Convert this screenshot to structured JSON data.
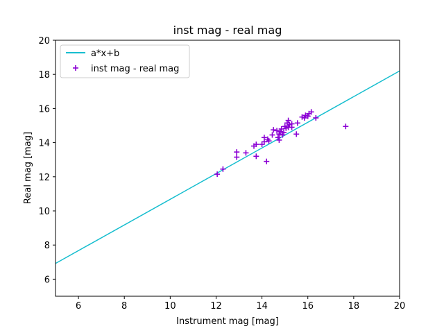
{
  "chart_data": {
    "type": "scatter",
    "title": "inst mag - real mag",
    "xlabel": "Instrument mag [mag]",
    "ylabel": "Real mag [mag]",
    "xlim": [
      5,
      20
    ],
    "ylim": [
      5,
      20
    ],
    "xticks": [
      6,
      8,
      10,
      12,
      14,
      16,
      18,
      20
    ],
    "yticks": [
      6,
      8,
      10,
      12,
      14,
      16,
      18,
      20
    ],
    "grid": false,
    "legend_position": "top-left",
    "colors": {
      "line": "#17becf",
      "points": "#8b00d4"
    },
    "fit_line": {
      "name": "a*x+b",
      "points": [
        [
          5,
          6.92
        ],
        [
          20,
          18.2
        ]
      ]
    },
    "scatter_series": {
      "name": "inst mag - real mag",
      "marker": "+",
      "points": [
        [
          12.05,
          12.15
        ],
        [
          12.3,
          12.45
        ],
        [
          12.9,
          13.15
        ],
        [
          12.9,
          13.45
        ],
        [
          13.3,
          13.4
        ],
        [
          13.65,
          13.8
        ],
        [
          13.75,
          13.2
        ],
        [
          13.75,
          13.9
        ],
        [
          14.0,
          13.9
        ],
        [
          14.1,
          14.05
        ],
        [
          14.1,
          14.3
        ],
        [
          14.2,
          12.9
        ],
        [
          14.25,
          14.2
        ],
        [
          14.3,
          14.1
        ],
        [
          14.45,
          14.45
        ],
        [
          14.5,
          14.75
        ],
        [
          14.65,
          14.7
        ],
        [
          14.7,
          14.3
        ],
        [
          14.75,
          14.5
        ],
        [
          14.75,
          14.15
        ],
        [
          14.8,
          14.65
        ],
        [
          14.85,
          14.8
        ],
        [
          14.9,
          14.45
        ],
        [
          14.95,
          14.6
        ],
        [
          15.0,
          14.95
        ],
        [
          15.05,
          14.85
        ],
        [
          15.1,
          15.15
        ],
        [
          15.15,
          14.9
        ],
        [
          15.15,
          15.3
        ],
        [
          15.2,
          15.05
        ],
        [
          15.3,
          15.1
        ],
        [
          15.3,
          14.9
        ],
        [
          15.5,
          14.5
        ],
        [
          15.55,
          15.15
        ],
        [
          15.75,
          15.5
        ],
        [
          15.85,
          15.45
        ],
        [
          15.9,
          15.6
        ],
        [
          16.0,
          15.55
        ],
        [
          16.05,
          15.7
        ],
        [
          16.15,
          15.8
        ],
        [
          16.35,
          15.45
        ],
        [
          17.65,
          14.95
        ]
      ]
    }
  }
}
